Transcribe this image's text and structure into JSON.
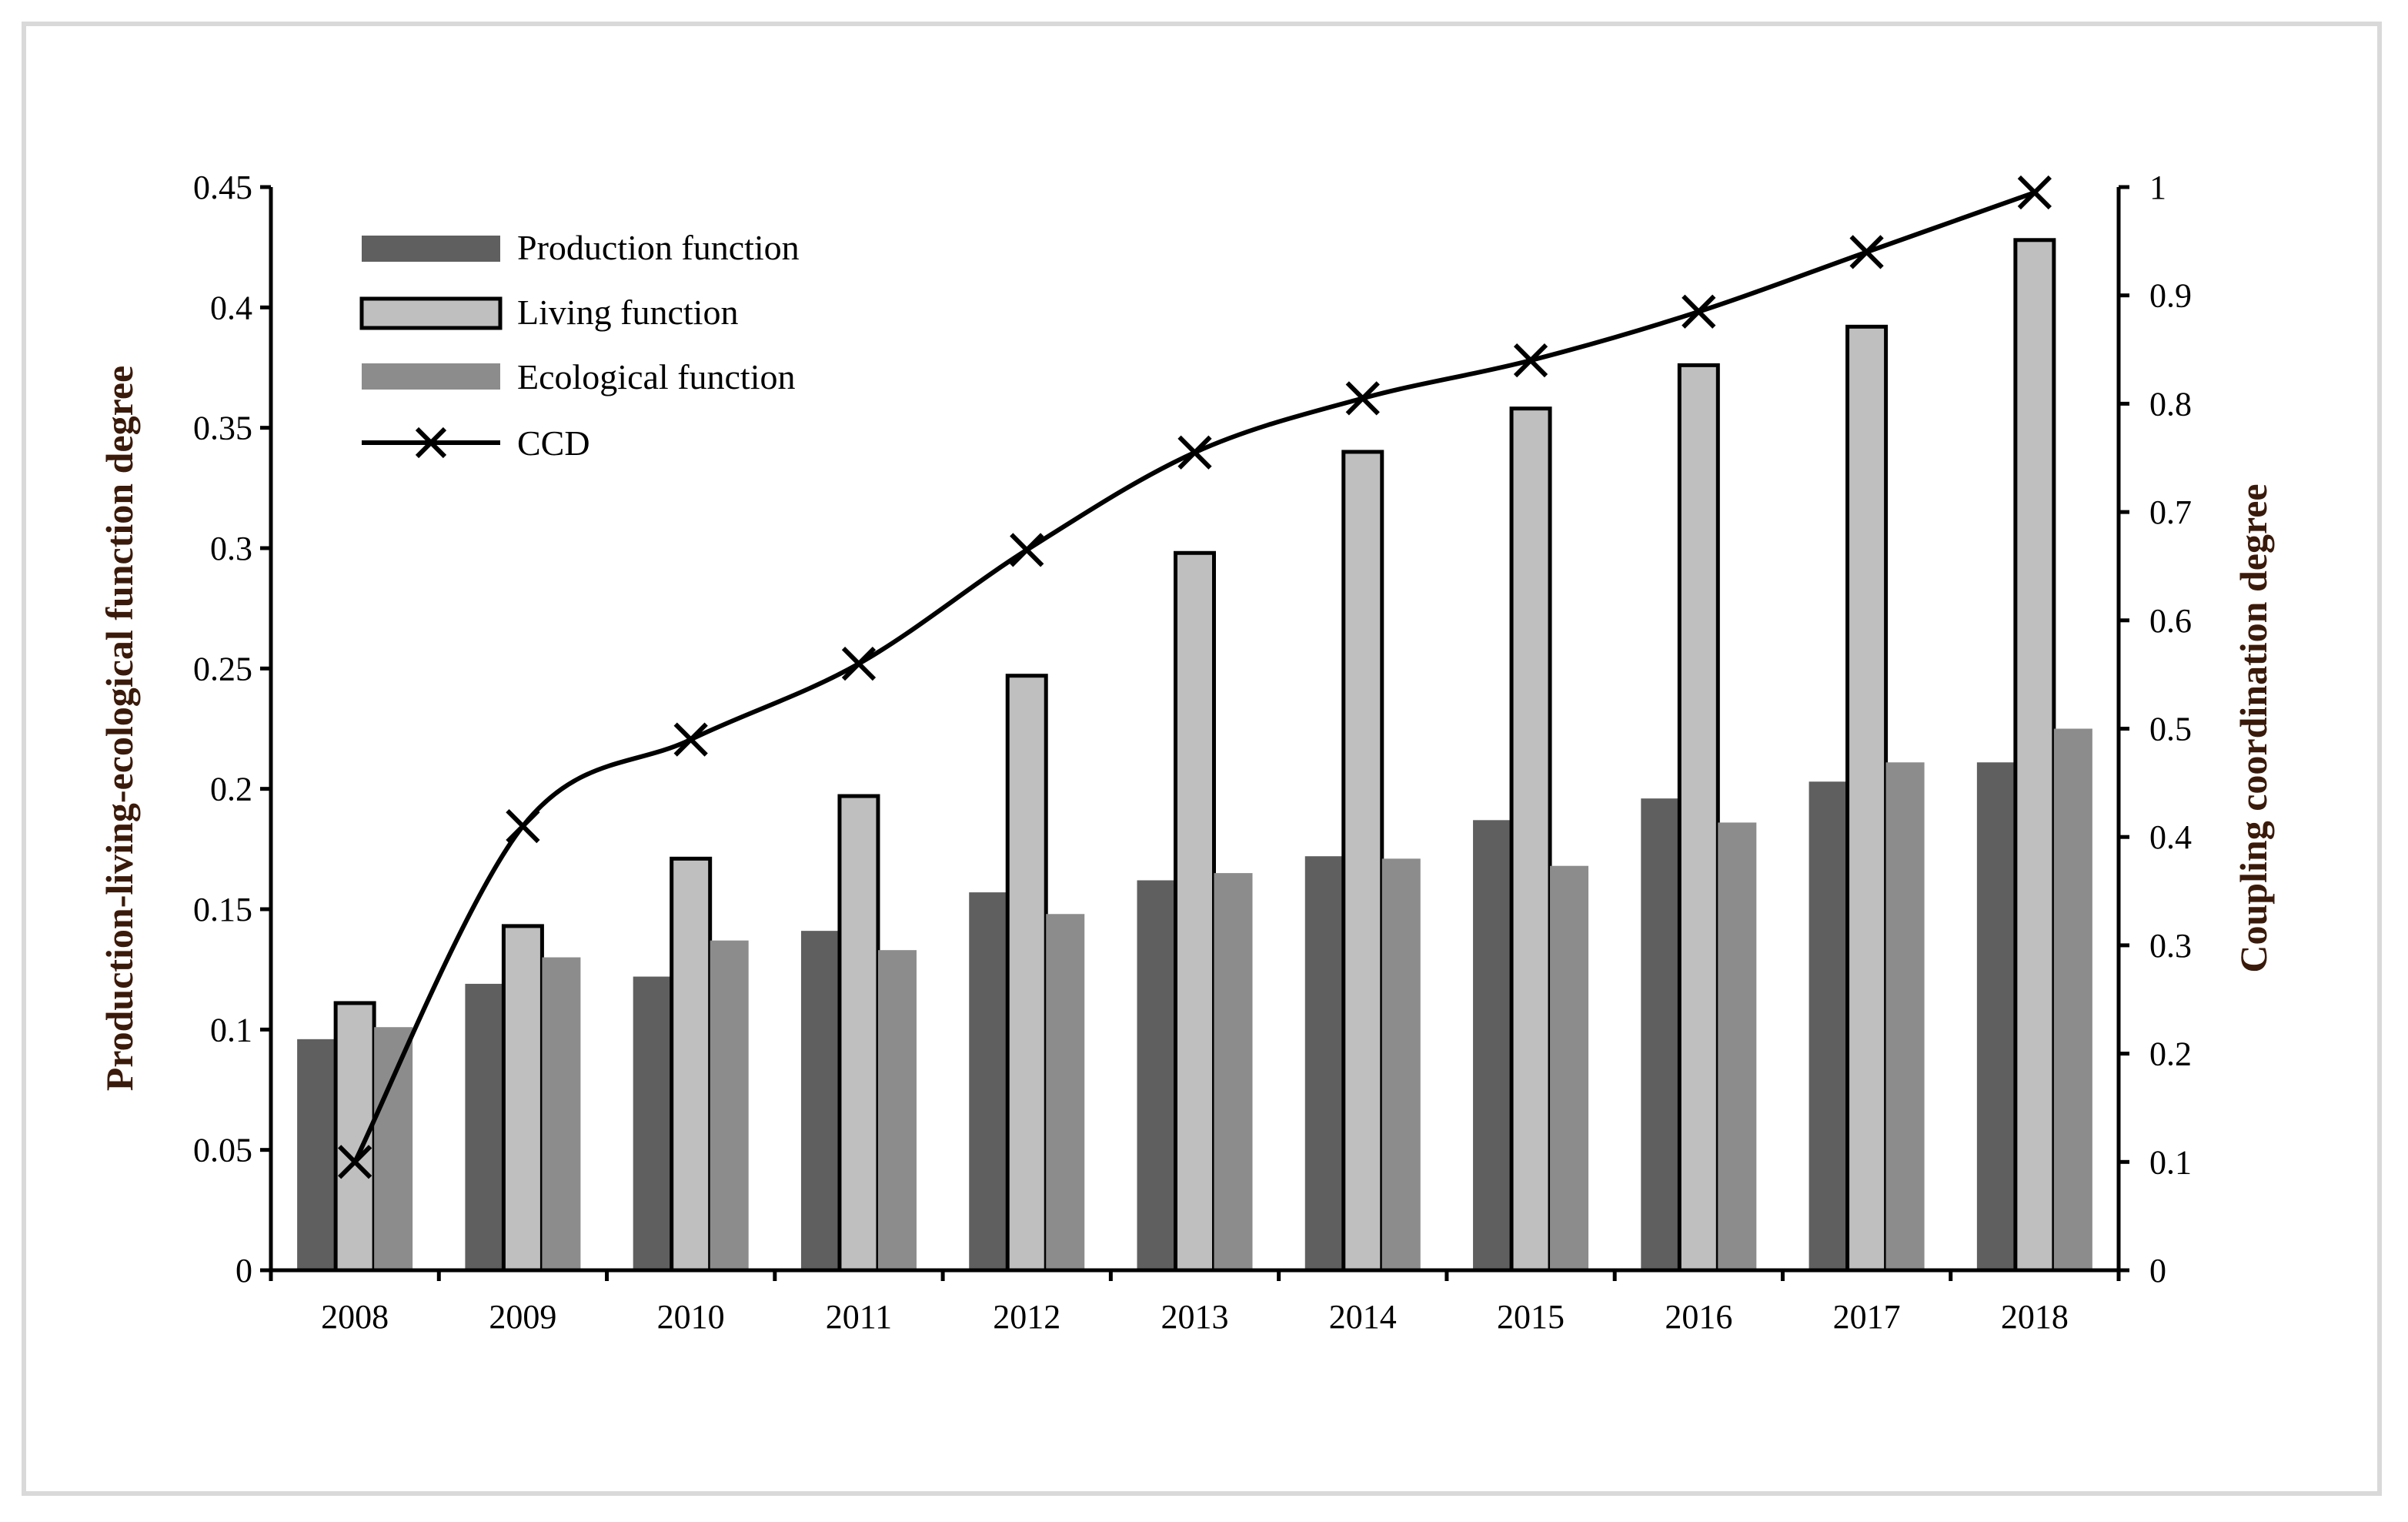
{
  "chart_data": {
    "type": "bar",
    "title": "",
    "xlabel": "",
    "ylabel": "Production-living-ecological function degree",
    "y2label": "Coupling coordination degree",
    "ylim": [
      0,
      0.45
    ],
    "y2lim": [
      0,
      1
    ],
    "yticks": [
      "0",
      "0.05",
      "0.1",
      "0.15",
      "0.2",
      "0.25",
      "0.3",
      "0.35",
      "0.4",
      "0.45"
    ],
    "y2ticks": [
      "0",
      "0.1",
      "0.2",
      "0.3",
      "0.4",
      "0.5",
      "0.6",
      "0.7",
      "0.8",
      "0.9",
      "1"
    ],
    "categories": [
      "2008",
      "2009",
      "2010",
      "2011",
      "2012",
      "2013",
      "2014",
      "2015",
      "2016",
      "2017",
      "2018"
    ],
    "series": [
      {
        "name": "Production function",
        "type": "bar",
        "axis": "left",
        "color": "#5f5f5f",
        "values": [
          0.096,
          0.119,
          0.122,
          0.141,
          0.157,
          0.162,
          0.172,
          0.187,
          0.196,
          0.203,
          0.211
        ]
      },
      {
        "name": "Living function",
        "type": "bar",
        "axis": "left",
        "color": "#bfbfbf",
        "stroke": "#000000",
        "values": [
          0.111,
          0.143,
          0.171,
          0.197,
          0.247,
          0.298,
          0.34,
          0.358,
          0.376,
          0.392,
          0.428
        ]
      },
      {
        "name": "Ecological function",
        "type": "bar",
        "axis": "left",
        "color": "#8c8c8c",
        "values": [
          0.101,
          0.13,
          0.137,
          0.133,
          0.148,
          0.165,
          0.171,
          0.168,
          0.186,
          0.211,
          0.225
        ]
      },
      {
        "name": "CCD",
        "type": "line",
        "axis": "right",
        "color": "#000000",
        "marker": "x",
        "values": [
          0.1,
          0.41,
          0.49,
          0.56,
          0.665,
          0.755,
          0.805,
          0.84,
          0.885,
          0.94,
          0.995
        ]
      }
    ],
    "legend": "top-left"
  }
}
